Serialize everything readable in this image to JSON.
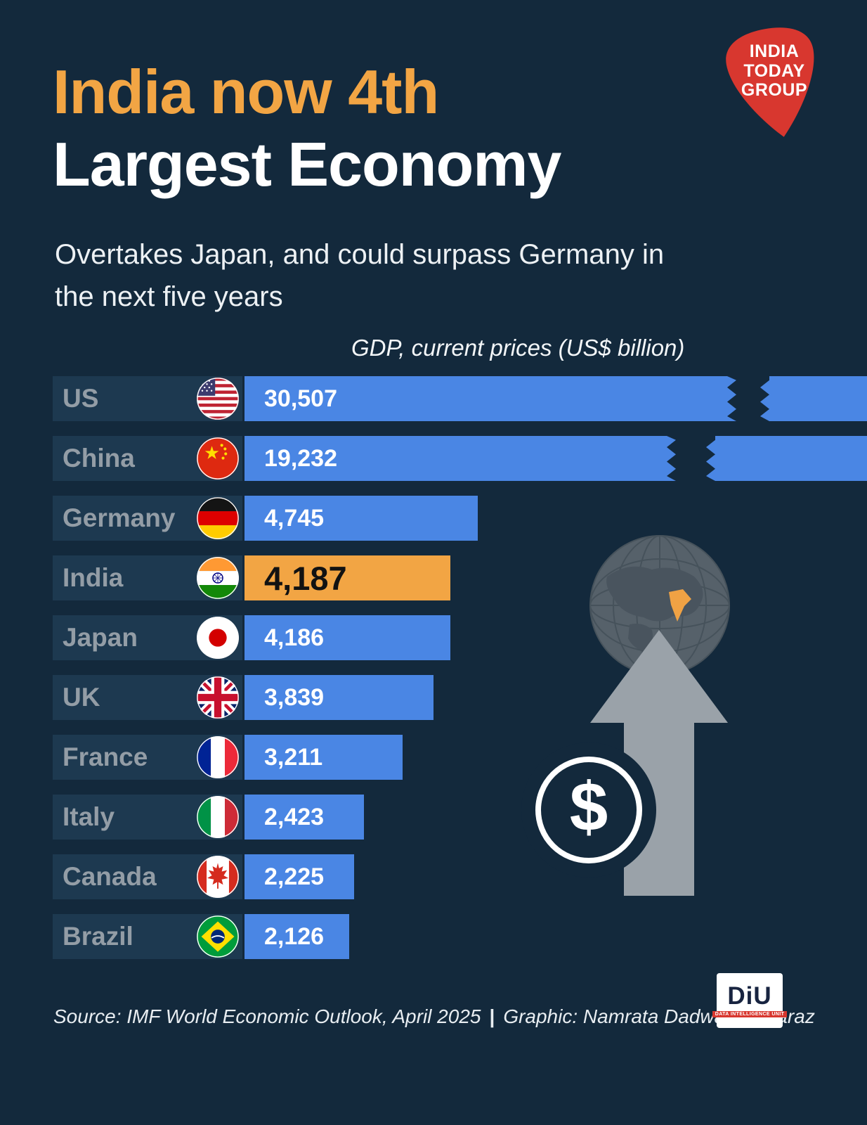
{
  "brand": {
    "logo_line1": "INDIA",
    "logo_line2": "TODAY",
    "logo_line3": "GROUP"
  },
  "header": {
    "title_accent": "India now 4th",
    "title_main": "Largest Economy",
    "subtitle": "Overtakes Japan, and could surpass Germany in the next five years"
  },
  "chart_data": {
    "type": "bar",
    "title": "GDP, current prices (US$ billion)",
    "xlabel": "GDP, current prices (US$ billion)",
    "ylabel": "",
    "orientation": "horizontal",
    "categories": [
      "US",
      "China",
      "Germany",
      "India",
      "Japan",
      "UK",
      "France",
      "Italy",
      "Canada",
      "Brazil"
    ],
    "values": [
      30507,
      19232,
      4745,
      4187,
      4186,
      3839,
      3211,
      2423,
      2225,
      2126
    ],
    "highlight_country": "India",
    "truncated_bars": [
      "US",
      "China"
    ],
    "rows": [
      {
        "country": "US",
        "value": 30507,
        "value_label": "30,507",
        "flag_icon": "us-flag-icon",
        "truncated": true,
        "highlight": false
      },
      {
        "country": "China",
        "value": 19232,
        "value_label": "19,232",
        "flag_icon": "china-flag-icon",
        "truncated": true,
        "highlight": false
      },
      {
        "country": "Germany",
        "value": 4745,
        "value_label": "4,745",
        "flag_icon": "germany-flag-icon",
        "truncated": false,
        "highlight": false
      },
      {
        "country": "India",
        "value": 4187,
        "value_label": "4,187",
        "flag_icon": "india-flag-icon",
        "truncated": false,
        "highlight": true
      },
      {
        "country": "Japan",
        "value": 4186,
        "value_label": "4,186",
        "flag_icon": "japan-flag-icon",
        "truncated": false,
        "highlight": false
      },
      {
        "country": "UK",
        "value": 3839,
        "value_label": "3,839",
        "flag_icon": "uk-flag-icon",
        "truncated": false,
        "highlight": false
      },
      {
        "country": "France",
        "value": 3211,
        "value_label": "3,211",
        "flag_icon": "france-flag-icon",
        "truncated": false,
        "highlight": false
      },
      {
        "country": "Italy",
        "value": 2423,
        "value_label": "2,423",
        "flag_icon": "italy-flag-icon",
        "truncated": false,
        "highlight": false
      },
      {
        "country": "Canada",
        "value": 2225,
        "value_label": "2,225",
        "flag_icon": "canada-flag-icon",
        "truncated": false,
        "highlight": false
      },
      {
        "country": "Brazil",
        "value": 2126,
        "value_label": "2,126",
        "flag_icon": "brazil-flag-icon",
        "truncated": false,
        "highlight": false
      }
    ],
    "colors": {
      "bar": "#4a86e4",
      "highlight_bar": "#f2a544",
      "background": "#13293c",
      "title_accent": "#f2a544"
    }
  },
  "decor": {
    "dollar_glyph": "$"
  },
  "footer": {
    "source": "Source: IMF World Economic Outlook, April 2025",
    "divider": "|",
    "credit": "Graphic: Namrata Dadwal, Sarfaraz"
  },
  "diu_logo": {
    "name": "DiU",
    "tagline": "DATA INTELLIGENCE UNIT"
  }
}
